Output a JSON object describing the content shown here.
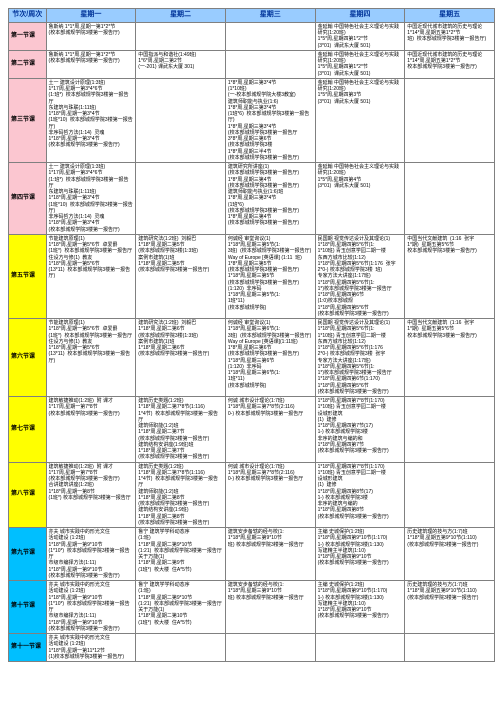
{
  "header": {
    "label_col": "节次/周次",
    "days": [
      "星期一",
      "星期二",
      "星期三",
      "星期四",
      "星期五"
    ]
  },
  "periods": [
    {
      "label": "第一节课",
      "color": "morning",
      "cells": [
        "鲁斯纳 1*1*周,星期一第1*2*节\n(校本部城规学院3楼第一报告厅)",
        "",
        "",
        "金延翰 中国特色社会主义理论与实践研究(1:20班)\n1*5*周,星期四第1*2*节\n(3*01)  课武东大厦 501)",
        "中国近现代城市建筑的历史与理论 1*14*周,星期五第1*2*节\n班)  校本部城规学院3楼第一报告厅)"
      ]
    },
    {
      "label": "第二节课",
      "color": "morning",
      "cells": [
        "鲁斯纳 1*1*周,星期一第1*2*节\n(校本部城规学院3楼第一报告厅)",
        "中国指派与和谐社(1:49班)\n1*6*周,星期二第2节\n(一-201) 课武东大厦 301)",
        "",
        "金延翰 中国特色社会主义理论与实践研究(1:20班)\n1*5*周,星期四第1*2*节\n(3*01)  课武东大厦 501)",
        "中国近现代城市建筑的历史与理论\n1*14*周,星期五第1*2*节\n校本部城规学院3楼第一报告厅)"
      ]
    },
    {
      "label": "第三节课",
      "color": "morning",
      "cells": [
        "土一 建筑设计原理(1:3班)\n1*17周,星期一第3*4*6节\n(1:班*)  校本部城规学院3楼第一报告厅\n东建筑与珠联(1:11班)\n1*18*周,星期一第3*4节\n(1班*10)  校本部城规学院3楼第一报告厅)\n非序码哲方法(1:14)  灵魂\n1*18*周,星期一第3*4节\n(校本部城规学院3楼第一报告厅)",
        "",
        "1*8*周,星期三第3*4节\n(1*10班)\n(一-校本部城规学院大楼3教室)  \n建筑师职能与执业(1:6)\n1*8*周,星期三第3*4节\n(1班*6)  校本部城规学院3楼第一报告厅)\n1*8*周,星期三第3*4节\n(校本部城规学院3楼第一报告厅\n3*8*周,星期三第6节\n(校本部城规学院3楼\n1*8*周,星期三半4节\n(校本部城规学院3楼第一报告厅)",
        "金延翰 中国特色社会主义理论与实践研究(1:20班)\n1*5*周,星期四第3节\n(3*01)  课武东大厦 501)",
        ""
      ]
    },
    {
      "label": "第四节课",
      "color": "morning",
      "cells": [
        "土一 建筑设计原理(1:3班)\n1*17周,星期一第3*4*6节\n(1:班*)  校本部城规学院3楼第一报告厅\n东建筑与珠联(1:11班)\n1*18*周,星期一第3*4节\n(1班*10)  校本部城规学院3楼第一报告厅)\n非序码哲方法(1:14)  灵魂\n1*18*周,星期一第3*4节\n(校本部城规学院3楼第一报告厅)",
        "",
        "建筑研究所讲座(1)\n(校本部城规学院3楼第一报告厅)\n1*8*周,星期三第4节\n(校本部城规学院3楼第一报告厅)\n建筑师职能与执业(1:6)班\n1*8*周,星期三第3*4节\n(1班*6)\n(校本部城规学院3楼第一报告厅)\n1*8*周,星期三第4节\n(校本部城规学院3楼第一报告厅)",
        "金延翰 中国特色社会主义理论与实践研究(1:20班)\n1*5*周,星期四第4节\n(3*01)  课武东大厦 501)",
        ""
      ]
    },
    {
      "label": "第五节课",
      "color": "mid",
      "cells": [
        "节能建筑原理(1)\n1*18*周,星期一第5*6节  卓爱爵\n(1班*)  校本部城规学院3楼第一报告厅\n住设方与修(1)  教友\n1*18*周,星期一第5*6节\n(13*11)  校本部城规学院3楼第一报告厅)",
        "建筑研究法(1:2班)  刘毅巴\n1*18*周,星期二第5节\n(校本部城规学院3楼(1:3班)\n案例市建筑(1)班\n1*18*周,星期二第5节\n(校本部城规学院3楼第一报告厅)",
        "何诚经 审堂询议(1)\n1*18*周,星期三第5节(1:\n3班)  (校本部城规学院3楼第一报告厅)\nWay of Europe [英语课] (1:11  班)\n1*8*周,星期三第5节\n(校本部城规学院3楼第一报告厅)\n1*18*周,星期三第5节\n(校本部城规学院3楼第一报告厅)\n(1:120)  非序码\n1*18*周,星期三第5节(1:\n1班*11)\n(校本部城规学院)",
        "民国期 视觉传达设计及其理论(1)\n1*18*周,星期四第5*6节(1:\n1*10班) 青玉创意学园二期一楼\n东西方城市比较(1:12)\n1*18*周,星期四第5*6节(1:176  张宇\n2*0-) 校本部城规学院3楼  班)\n专家方法大讲座(1:17班)\n1*18*周,星期四第5*6节(1:\n1*)校本部城规学院3楼第一报告厅\n1*18*周,星期四第6节\n(1:0)校本部城规\n1*18*周,星期四第5*6节\n(校本部城规学院3楼第一报告厅)",
        "中国当代文献建筑  (1:16  张宇\n1*期)  星期五第5*6节\n校本部城规学院3楼第一报告厅)"
      ]
    },
    {
      "label": "第六节课",
      "color": "mid",
      "cells": [
        "节能建筑原理(1)\n1*18*周,星期一第5*6节  卓爱爵\n(1班*)  校本部城规学院3楼第一报告厅\n住设方与修(1)  教友\n1*18*周,星期一第5*6节\n(13*11)  校本部城规学院3楼第一报告厅)",
        "建筑研究法(1:2班)  刘毅巴\n1*18*周,星期二第6节\n(校本部城规学院3楼(1:3班)\n案例市建筑(1)班\n1*18*周,星期二第6节\n(校本部城规学院3楼第一报告厅)",
        "何诚经 审堂询议(1)\n1*18*周,星期三第6节(1:\n3班)  (校本部城规学院3楼第一报告厅)\nWay of Europe [英语课](1:11班)\n1*8*周,星期三第6节\n(校本部城规学院3楼第一报告厅)\n1*18*周,星期三第6节\n(1:120)  非序码\n1*18*周,星期三第6节(1:\n1班*11)\n(校本部城规学院)",
        "民国期 视觉传达设计及其理论(1)\n1*18*周,星期四第5*6节(1:\n1*10班) 青玉创意学园二期一楼\n东西方城市比较(1:12)\n1*18*周,星期四第5*6节(1:176\n2*0-) 校本部城规学院3楼  张宇\n专家方法大讲座(1:17班)\n1*18*周,星期四第5*6节(1:\n1*)校本部城规学院3楼第一报告厅\n1*18*周,星期四第6节(1:170)\n1*18*周,星期四第5*6节\n(校本部城规学院3楼第一报告厅)",
        "中国当代文献建筑  (1:16  张宇\n1*期)  星期五第5*6节\n校本部城规学院3楼第一报告厅)"
      ]
    },
    {
      "label": "第七节课",
      "color": "mid",
      "cells": [
        "建筑敏捷推动(1:2班)  附 课才\n1*17周,星期一第7*8节\n(校本部城规学院3楼第一报告厅)",
        "建筑历史类题(1:2班)\n1*18*周,星期二第7*8节(1:116)\n1*4节)  校本部城规学院3楼第一报告厅\n建筑师职能(1:2)班\n1*18*周,星期二第7节\n(校本部城规学院3楼第一报告厅)\n建筑结构安讲座(1:9班)班\n1*18*周,星期二第7节\n(校本部城规学院3楼第一报告厅)",
        "何诚 城市设计理论(1:7班)\n1*18*周,星期三第7*8节(2:116)\n0-) 校本部城规学院3楼第一报告厅",
        "1*18*周,星期四第7*8节(1:170)\n1*10班) 青玉创意学园二期一楼\n设城形建筑\n(1)  建修\n1*18*周,星期四第7节(17)\n1-) 校本部城规学院3楼\n非序的建筑与编的和\n1*18*周,星期四第7节\n(校本部城规学院3楼第一报告厅)",
        ""
      ]
    },
    {
      "label": "第八节课",
      "color": "mid",
      "cells": [
        "建筑敏捷推动(1:2班)  附 课才\n1*17周,星期一第7*8节\n(校本部城规学院3楼第一报告厅)\n合讲建筑讲座(1:2班)\n1*18*周,星期一第8节\n(1班*) 校本部城规学院3楼第一报告厅",
        "建筑历史类题(1:2班)\n1*18*周,星期二第7*8节(1:116)\n1*4节)  校本部城规学院3楼第一报告厅\n建筑师职能(1:2)班\n1*18*周,星期二第8节\n(校本部城规学院3楼第一报告厅)\n建筑结构安讲座(1:9班)\n1*18*周,星期二第8节\n(校本部城规学院3楼第一报告厅)",
        "何诚 城市设计理论(1:7班)\n1*18*周,星期三第7*8节(2:116)\n0-) 校本部城规学院3楼第一报告厅",
        "1*18*周,星期四第7*8节(1:170)\n1*10班) 青玉创意学园二期一楼\n设城形建筑\n(1)  建修\n1*18*周,星期四第8节(17)\n1-) 校本部城规学院3楼\n非序的建筑与编的\n1*18*周,星期四第8节\n(校本部城规学院3楼第一报告厅)",
        ""
      ]
    },
    {
      "label": "第九节课",
      "color": "eve",
      "cells": [
        "亦夫 城市实践中的形光文住\n活动建设 (1:2班)\n1*18*周,星期一第9*10节\n(1*10*)  校本部城规学院3楼第一报告厅\n市级市编择方法(1:11)\n1*18*周,星期一第9*10节\n(校本部城规学院3楼第一报告厅)",
        "鲁宁 建筑学学科动态序\n(1:班)\n1*18*周,星期二第9*10节\n(1:21)  校本部城规学院3楼第一报告厅\n关于万能(1)\n1*18*周,星期二第9节\n(1班*)  校大楼  住A*5节)",
        "建筑安步备辖的经与校(1:\n1*18*周,星期三第9*10节\n班) 校本部城规学院3楼第一报告厅",
        "主编 史城保护(1:2班)\n1*18*周,星期四第9*10节(1:170)\n1-) 校本部城规学院3楼(1:130)\n写建精主半建筑(1:10)\n1*18*周,星期四第9*10节\n(校本部城规学院3楼第一报告厅)",
        "历史建筑理的技与方(1:7)班\n1*18*周,星期五第9*10节(1:110)\n(校本部城规学院3楼第一报告厅)"
      ]
    },
    {
      "label": "第十节课",
      "color": "eve",
      "cells": [
        "亦夫 城市实践中的形光文住\n活动建设 (1:2班)\n1*18*周,星期一第9*10节\n(1*10*)  校本部城规学院3楼第一报告厅\n市级市编择方法(1:11)\n1*18*周,星期一第9*10节\n(校本部城规学院3楼第一报告厅)",
        "鲁宁 建筑学学科动态序\n(1:班)\n1*18*周,星期二第9*10节\n(1:21)  校本部城规学院3楼第一报告厅\n关于万能(1)\n1*18*周,星期二第10节\n(1班*)  校大楼  住A*5节)",
        "建筑安步备辖的经与校(1:\n1*18*周,星期三第9*10节\n班) 校本部城规学院3楼第一报告厅",
        "主编 史城保护(1:2班)\n1*18*周,星期四第9*10节(1:170)\n1-) 校本部城规学院3楼(1:130)\n写建精主半建筑(1:10)\n1*18*周,星期四第9*10节\n(校本部城规学院3楼第一报告厅)",
        "历史建筑理的技与方(1:7)班\n1*18*周,星期五第9*10节(1:110)\n(校本部城规学院3楼第一报告厅)"
      ]
    },
    {
      "label": "第十一节课",
      "color": "eve",
      "cells": [
        "亦夫 城市实践中的形光文住\n活动建设 (1:2班)\n1*18*周,星期一第11*12节\n(1)校本部城规学院3楼第一报告厅)",
        "",
        "",
        "",
        ""
      ]
    }
  ],
  "colors": {
    "morning": "#fbc6d0",
    "mid": "#ffff00",
    "eve": "#00bfff",
    "header_bg": "#99ccff",
    "header_fg": "#003399",
    "border": "#808080"
  }
}
